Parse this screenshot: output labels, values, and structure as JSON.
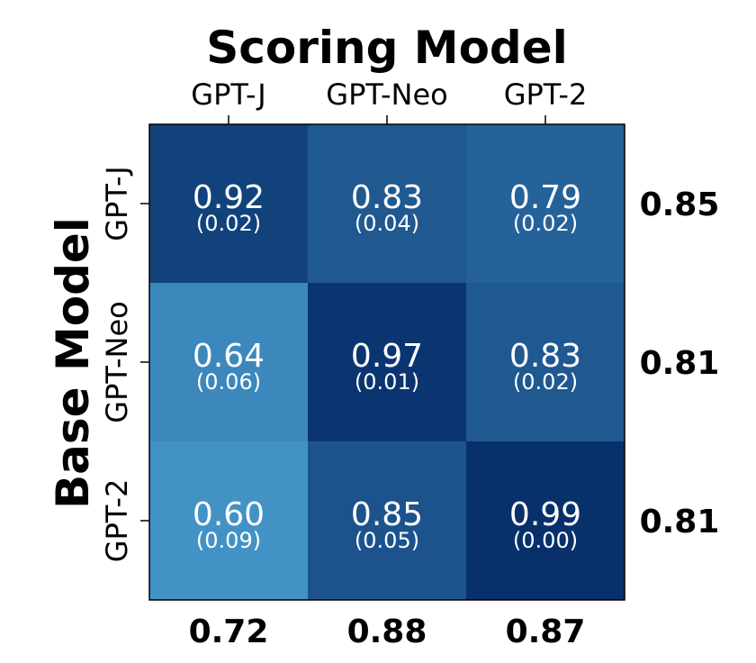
{
  "chart_data": {
    "type": "heatmap",
    "x_title": "Scoring Model",
    "y_title": "Base Model",
    "x_categories": [
      "GPT-J",
      "GPT-Neo",
      "GPT-2"
    ],
    "y_categories": [
      "GPT-J",
      "GPT-Neo",
      "GPT-2"
    ],
    "values": [
      [
        0.92,
        0.83,
        0.79
      ],
      [
        0.64,
        0.97,
        0.83
      ],
      [
        0.6,
        0.85,
        0.99
      ]
    ],
    "cell_labels": [
      [
        "0.92",
        "0.83",
        "0.79"
      ],
      [
        "0.64",
        "0.97",
        "0.83"
      ],
      [
        "0.60",
        "0.85",
        "0.99"
      ]
    ],
    "std_labels": [
      [
        "(0.02)",
        "(0.04)",
        "(0.02)"
      ],
      [
        "(0.06)",
        "(0.01)",
        "(0.02)"
      ],
      [
        "(0.09)",
        "(0.05)",
        "(0.00)"
      ]
    ],
    "row_means": [
      "0.85",
      "0.81",
      "0.81"
    ],
    "col_means": [
      "0.72",
      "0.88",
      "0.87"
    ],
    "colormap": "Blues",
    "color_low": "#4292c6",
    "color_high": "#08306b"
  }
}
